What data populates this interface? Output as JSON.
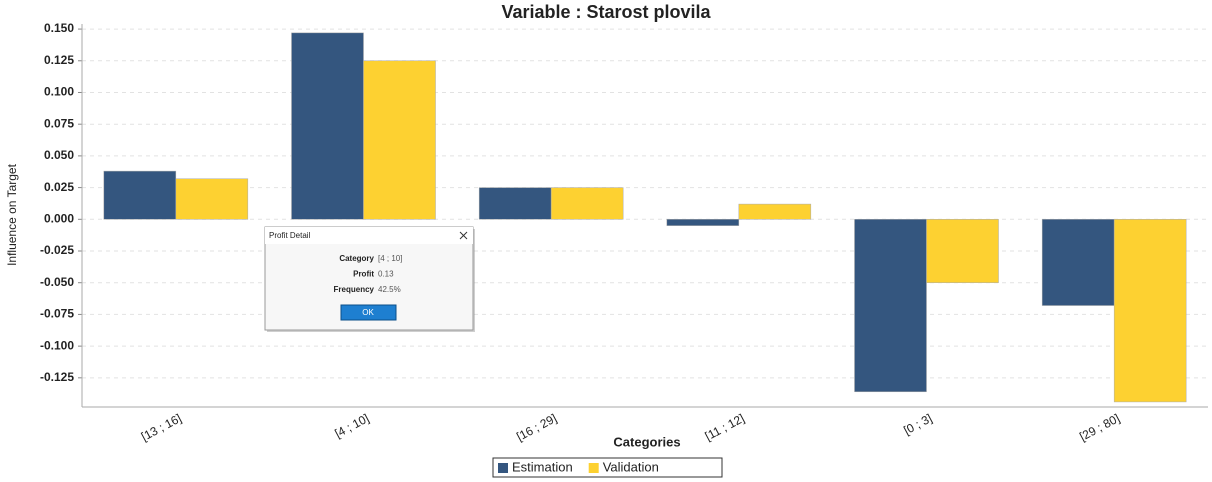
{
  "chart_data": {
    "type": "bar",
    "title": "Variable : Starost plovila",
    "x_label": "Categories",
    "y_label": "Influence on Target",
    "categories": [
      "[13 ; 16]",
      "[4 ; 10]",
      "[16 ; 29]",
      "[11 ; 12]",
      "[0 ; 3]",
      "[29 ; 80]"
    ],
    "series": [
      {
        "name": "Estimation",
        "color": "#34567f",
        "values": [
          0.038,
          0.147,
          0.025,
          -0.005,
          -0.136,
          -0.068
        ]
      },
      {
        "name": "Validation",
        "color": "#fdd131",
        "values": [
          0.032,
          0.125,
          0.025,
          0.012,
          -0.05,
          -0.144
        ]
      }
    ],
    "ylim": [
      -0.148,
      0.154
    ],
    "yticks": [
      {
        "value": -0.125,
        "label": "-0.125"
      },
      {
        "value": -0.1,
        "label": "-0.100"
      },
      {
        "value": -0.075,
        "label": "-0.075"
      },
      {
        "value": -0.05,
        "label": "-0.050"
      },
      {
        "value": -0.025,
        "label": "-0.025"
      },
      {
        "value": 0,
        "label": "0.000"
      },
      {
        "value": 0.025,
        "label": "0.025"
      },
      {
        "value": 0.05,
        "label": "0.050"
      },
      {
        "value": 0.075,
        "label": "0.075"
      },
      {
        "value": 0.1,
        "label": "0.100"
      },
      {
        "value": 0.125,
        "label": "0.125"
      },
      {
        "value": 0.15,
        "label": "0.150"
      }
    ],
    "grid": true,
    "legend": "bottom"
  },
  "dialog": {
    "title": "Profit Detail",
    "rows": [
      [
        "Category",
        "[4 ; 10]"
      ],
      [
        "Profit",
        "0.13"
      ],
      [
        "Frequency",
        "42.5%"
      ]
    ],
    "button": "OK"
  }
}
